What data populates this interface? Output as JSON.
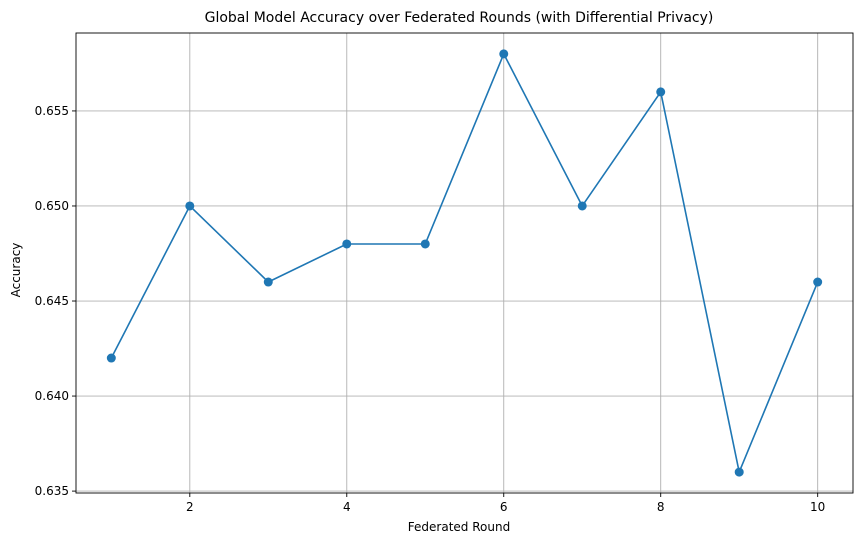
{
  "chart_data": {
    "type": "line",
    "title": "Global Model Accuracy over Federated Rounds (with Differential Privacy)",
    "xlabel": "Federated Round",
    "ylabel": "Accuracy",
    "x": [
      1,
      2,
      3,
      4,
      5,
      6,
      7,
      8,
      9,
      10
    ],
    "series": [
      {
        "values": [
          0.642,
          0.65,
          0.646,
          0.648,
          0.648,
          0.658,
          0.65,
          0.656,
          0.636,
          0.646
        ],
        "color": "#1f77b4",
        "marker": "circle"
      }
    ],
    "xlim": [
      0.55,
      10.45
    ],
    "ylim": [
      0.6349,
      0.6591
    ],
    "xticks": [
      2,
      4,
      6,
      8,
      10
    ],
    "xtick_labels": [
      "2",
      "4",
      "6",
      "8",
      "10"
    ],
    "yticks": [
      0.635,
      0.64,
      0.645,
      0.65,
      0.655
    ],
    "ytick_labels": [
      "0.635",
      "0.640",
      "0.645",
      "0.650",
      "0.655"
    ],
    "grid": true,
    "legend": "none"
  }
}
